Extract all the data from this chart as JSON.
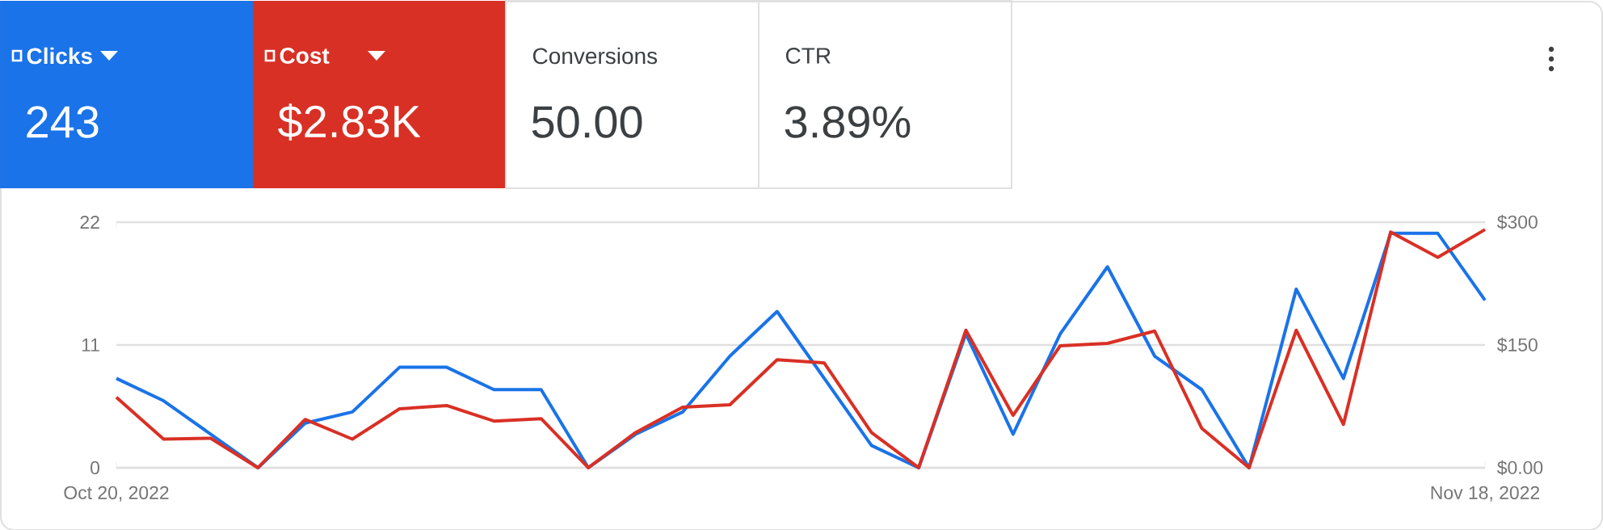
{
  "chart_data": {
    "type": "line",
    "x": [
      "2022-10-20",
      "2022-10-21",
      "2022-10-22",
      "2022-10-23",
      "2022-10-24",
      "2022-10-25",
      "2022-10-26",
      "2022-10-27",
      "2022-10-28",
      "2022-10-29",
      "2022-10-30",
      "2022-10-31",
      "2022-11-01",
      "2022-11-02",
      "2022-11-03",
      "2022-11-04",
      "2022-11-05",
      "2022-11-06",
      "2022-11-07",
      "2022-11-08",
      "2022-11-09",
      "2022-11-10",
      "2022-11-11",
      "2022-11-12",
      "2022-11-13",
      "2022-11-14",
      "2022-11-15",
      "2022-11-16",
      "2022-11-17",
      "2022-11-18"
    ],
    "series": [
      {
        "name": "Clicks",
        "color": "#1a73e8",
        "values": [
          8,
          6,
          3,
          0,
          4,
          5,
          9,
          9,
          7,
          7,
          0,
          3,
          5,
          10,
          14,
          8,
          2,
          0,
          12,
          3,
          12,
          18,
          10,
          7,
          0,
          16,
          8,
          21,
          21,
          15
        ]
      },
      {
        "name": "Cost",
        "color": "#d93025",
        "axis": "y2",
        "values": [
          86,
          35,
          36,
          0,
          59,
          35,
          72,
          76,
          57,
          60,
          0,
          43,
          74,
          77,
          132,
          128,
          43,
          0,
          168,
          64,
          149,
          152,
          167,
          48,
          0,
          168,
          53,
          288,
          257,
          291
        ]
      }
    ],
    "annotations": [
      "243",
      "$2.83K",
      "Conversions",
      "50.00",
      "CTR",
      "3.89%"
    ],
    "xlim": [
      "2022-10-20",
      "2022-11-18"
    ],
    "xticks": [
      {
        "value": "2022-10-20",
        "label": "Oct 20, 2022"
      },
      {
        "value": "2022-11-18",
        "label": "Nov 18, 2022"
      }
    ],
    "ylim": [
      0,
      22
    ],
    "yticks": [
      0,
      11,
      22
    ],
    "y2lim": [
      0,
      300
    ],
    "y2ticks": [
      {
        "value": 0,
        "label": "$0.00"
      },
      {
        "value": 150,
        "label": "$150"
      },
      {
        "value": 300,
        "label": "$300"
      }
    ],
    "grid": "y",
    "legend": "top left"
  }
}
